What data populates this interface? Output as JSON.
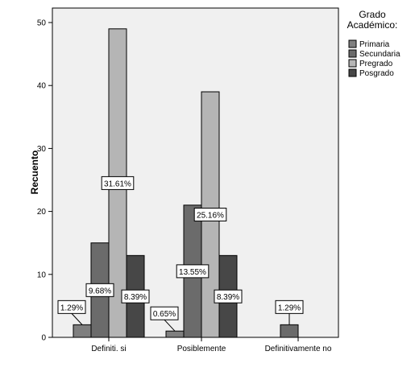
{
  "chart_data": {
    "type": "bar",
    "ylabel": "Recuento",
    "xlabel": "",
    "ylim": [
      0,
      50
    ],
    "yticks": [
      0,
      10,
      20,
      30,
      40,
      50
    ],
    "categories": [
      "Definiti. si",
      "Posiblemente",
      "Definitivamente no"
    ],
    "legend_title": "Grado Académico:",
    "legend_position": "top-right",
    "grid": false,
    "series": [
      {
        "name": "Primaria",
        "color": "#7f7f7f",
        "values": [
          2,
          1,
          0
        ],
        "labels": [
          "1.29%",
          "0.65%",
          null
        ]
      },
      {
        "name": "Secundaria",
        "color": "#6b6b6b",
        "values": [
          15,
          21,
          2
        ],
        "labels": [
          "9.68%",
          "13.55%",
          "1.29%"
        ]
      },
      {
        "name": "Pregrado",
        "color": "#b5b5b5",
        "values": [
          49,
          39,
          0
        ],
        "labels": [
          "31.61%",
          "25.16%",
          null
        ]
      },
      {
        "name": "Posgrado",
        "color": "#474747",
        "values": [
          13,
          13,
          0
        ],
        "labels": [
          "8.39%",
          "8.39%",
          null
        ]
      }
    ],
    "plot_background": "#f0f0f0"
  }
}
